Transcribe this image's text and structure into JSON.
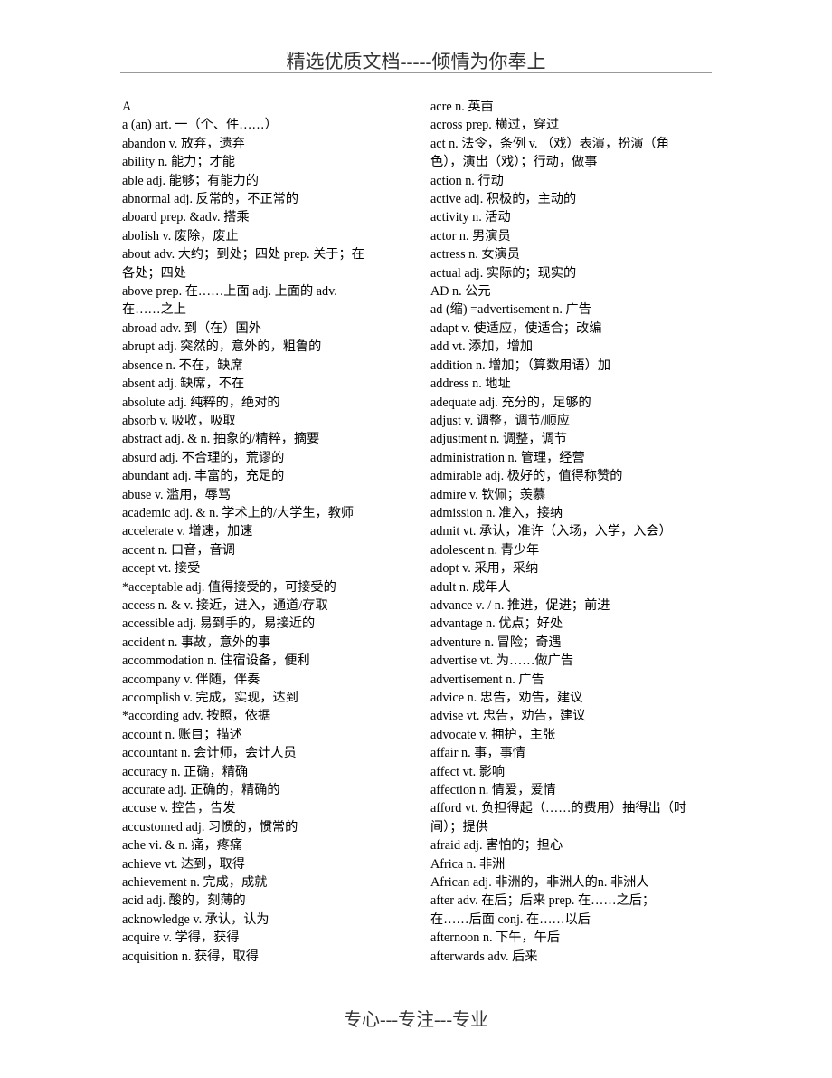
{
  "header": "精选优质文档-----倾情为你奉上",
  "footer": "专心---专注---专业",
  "left_column": [
    [
      "A"
    ],
    [
      "a (an) art. 一（个、件……）"
    ],
    [
      "abandon v. 放弃，遗弃"
    ],
    [
      "ability n. 能力；才能"
    ],
    [
      "able adj. 能够；有能力的"
    ],
    [
      "abnormal adj. 反常的，不正常的"
    ],
    [
      "aboard prep. &adv. 搭乘"
    ],
    [
      "abolish v. 废除，废止"
    ],
    [
      "about adv. 大约；到处；四处  prep. 关于；在",
      "各处；四处"
    ],
    [
      "above prep. 在……上面  adj. 上面的  adv.",
      "在……之上"
    ],
    [
      "abroad adv. 到（在）国外"
    ],
    [
      "abrupt adj. 突然的，意外的，粗鲁的"
    ],
    [
      "absence n. 不在，缺席"
    ],
    [
      "absent adj. 缺席，不在"
    ],
    [
      "absolute adj. 纯粹的，绝对的"
    ],
    [
      "absorb v. 吸收，吸取"
    ],
    [
      "abstract adj. & n. 抽象的/精粹，摘要"
    ],
    [
      "absurd adj. 不合理的，荒谬的"
    ],
    [
      "abundant adj. 丰富的，充足的"
    ],
    [
      "abuse v. 滥用，辱骂"
    ],
    [
      "academic adj. & n. 学术上的/大学生，教师"
    ],
    [
      "accelerate v. 增速，加速"
    ],
    [
      "accent n. 口音，音调"
    ],
    [
      "accept vt. 接受"
    ],
    [
      "*acceptable adj. 值得接受的，可接受的"
    ],
    [
      "access n. & v. 接近，进入，通道/存取"
    ],
    [
      "accessible adj. 易到手的，易接近的"
    ],
    [
      "accident n. 事故，意外的事"
    ],
    [
      "accommodation n. 住宿设备，便利"
    ],
    [
      "accompany v. 伴随，伴奏"
    ],
    [
      "accomplish v. 完成，实现，达到"
    ],
    [
      "*according adv. 按照，依据"
    ],
    [
      "account n. 账目；描述"
    ],
    [
      "accountant n. 会计师，会计人员"
    ],
    [
      "accuracy n. 正确，精确"
    ],
    [
      "accurate adj. 正确的，精确的"
    ],
    [
      "accuse v. 控告，告发"
    ],
    [
      "accustomed adj. 习惯的，惯常的"
    ],
    [
      "ache vi. & n. 痛，疼痛"
    ],
    [
      "achieve vt. 达到，取得"
    ],
    [
      "achievement n. 完成，成就"
    ],
    [
      "acid adj. 酸的，刻薄的"
    ],
    [
      "acknowledge v. 承认，认为"
    ],
    [
      "acquire v. 学得，获得"
    ],
    [
      "acquisition n. 获得，取得"
    ]
  ],
  "right_column": [
    [
      "acre n. 英亩"
    ],
    [
      "across prep. 横过，穿过"
    ],
    [
      "act n. 法令，条例  v. （戏）表演，扮演（角",
      "色），演出（戏）；行动，做事"
    ],
    [
      "action n. 行动"
    ],
    [
      "active adj. 积极的，主动的"
    ],
    [
      "activity n. 活动"
    ],
    [
      "actor n. 男演员"
    ],
    [
      "actress n. 女演员"
    ],
    [
      "actual adj. 实际的；现实的"
    ],
    [
      "AD n. 公元"
    ],
    [
      "ad (缩) =advertisement n. 广告"
    ],
    [
      "adapt v. 使适应，使适合；改编"
    ],
    [
      "add vt. 添加，增加"
    ],
    [
      "addition n. 增加；（算数用语）加"
    ],
    [
      "address n. 地址"
    ],
    [
      "adequate adj. 充分的，足够的"
    ],
    [
      "adjust v. 调整，调节/顺应"
    ],
    [
      "adjustment n. 调整，调节"
    ],
    [
      "administration n. 管理，经营"
    ],
    [
      "admirable adj. 极好的，值得称赞的"
    ],
    [
      "admire v. 钦佩；羡慕"
    ],
    [
      "admission n. 准入，接纳"
    ],
    [
      "admit vt. 承认，准许（入场，入学，入会）"
    ],
    [
      "adolescent n. 青少年"
    ],
    [
      "adopt v. 采用，采纳"
    ],
    [
      "adult n. 成年人"
    ],
    [
      "advance v. / n. 推进，促进；前进"
    ],
    [
      "advantage n. 优点；好处"
    ],
    [
      "adventure n. 冒险；奇遇"
    ],
    [
      "advertise vt. 为……做广告"
    ],
    [
      "advertisement n. 广告"
    ],
    [
      "advice n. 忠告，劝告，建议"
    ],
    [
      "advise vt. 忠告，劝告，建议"
    ],
    [
      "advocate v. 拥护，主张"
    ],
    [
      "affair n. 事，事情"
    ],
    [
      "affect vt. 影响"
    ],
    [
      "affection n. 情爱，爱情"
    ],
    [
      "afford vt. 负担得起（……的费用）抽得出（时",
      "间）；提供"
    ],
    [
      "afraid adj. 害怕的；担心"
    ],
    [
      "Africa n. 非洲"
    ],
    [
      "African adj. 非洲的，非洲人的n. 非洲人"
    ],
    [
      "after adv. 在后；后来  prep. 在……之后；",
      "在……后面  conj. 在……以后"
    ],
    [
      "afternoon n. 下午，午后"
    ],
    [
      "afterwards adv. 后来"
    ]
  ]
}
